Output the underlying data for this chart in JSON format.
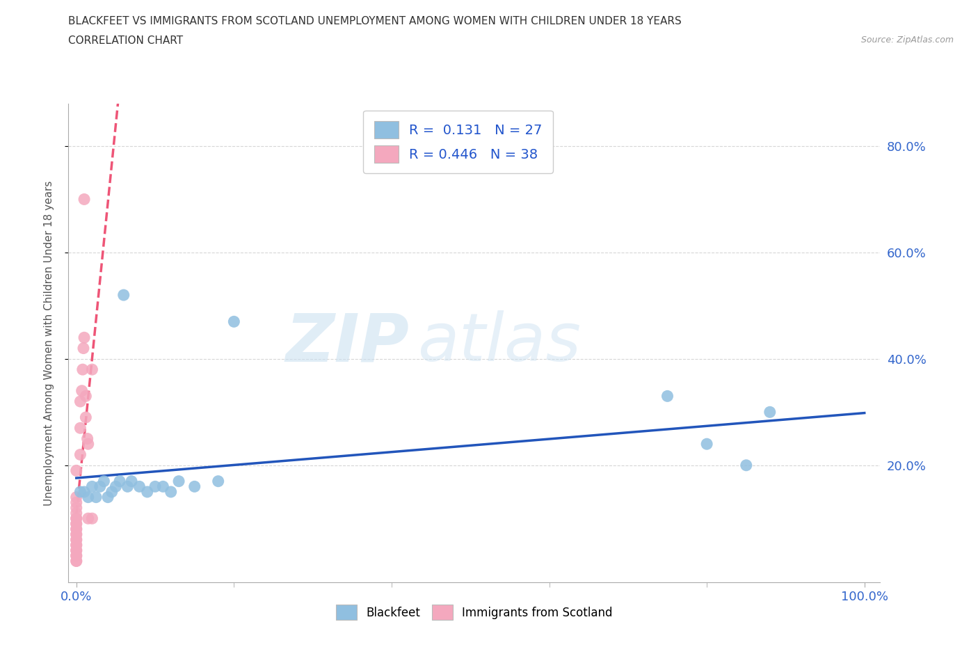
{
  "title_line1": "BLACKFEET VS IMMIGRANTS FROM SCOTLAND UNEMPLOYMENT AMONG WOMEN WITH CHILDREN UNDER 18 YEARS",
  "title_line2": "CORRELATION CHART",
  "source": "Source: ZipAtlas.com",
  "ylabel": "Unemployment Among Women with Children Under 18 years",
  "xlim": [
    -0.01,
    1.02
  ],
  "ylim": [
    -0.02,
    0.88
  ],
  "xtick_positions": [
    0.0,
    1.0
  ],
  "xtick_labels": [
    "0.0%",
    "100.0%"
  ],
  "ytick_positions": [
    0.2,
    0.4,
    0.6,
    0.8
  ],
  "ytick_labels": [
    "20.0%",
    "40.0%",
    "60.0%",
    "80.0%"
  ],
  "blue_color": "#90bfe0",
  "pink_color": "#f4a8be",
  "trend_blue_color": "#2255bb",
  "trend_pink_color": "#ee5577",
  "watermark_zip": "ZIP",
  "watermark_atlas": "atlas",
  "blackfeet_x": [
    0.005,
    0.01,
    0.015,
    0.02,
    0.025,
    0.03,
    0.035,
    0.04,
    0.045,
    0.05,
    0.055,
    0.06,
    0.065,
    0.07,
    0.08,
    0.09,
    0.1,
    0.11,
    0.12,
    0.13,
    0.15,
    0.18,
    0.2,
    0.75,
    0.8,
    0.85,
    0.88
  ],
  "blackfeet_y": [
    0.15,
    0.15,
    0.14,
    0.16,
    0.14,
    0.16,
    0.17,
    0.14,
    0.15,
    0.16,
    0.17,
    0.52,
    0.16,
    0.17,
    0.16,
    0.15,
    0.16,
    0.16,
    0.15,
    0.17,
    0.16,
    0.17,
    0.47,
    0.33,
    0.24,
    0.2,
    0.3
  ],
  "scotland_x": [
    0.0,
    0.0,
    0.0,
    0.0,
    0.0,
    0.0,
    0.0,
    0.0,
    0.0,
    0.0,
    0.0,
    0.0,
    0.0,
    0.0,
    0.0,
    0.0,
    0.0,
    0.0,
    0.0,
    0.0,
    0.0,
    0.0,
    0.0,
    0.005,
    0.005,
    0.005,
    0.007,
    0.008,
    0.009,
    0.01,
    0.01,
    0.012,
    0.012,
    0.014,
    0.015,
    0.015,
    0.02,
    0.02
  ],
  "scotland_y": [
    0.02,
    0.02,
    0.03,
    0.03,
    0.04,
    0.04,
    0.05,
    0.05,
    0.06,
    0.06,
    0.07,
    0.07,
    0.08,
    0.08,
    0.09,
    0.09,
    0.1,
    0.1,
    0.11,
    0.12,
    0.13,
    0.14,
    0.19,
    0.22,
    0.27,
    0.32,
    0.34,
    0.38,
    0.42,
    0.44,
    0.7,
    0.29,
    0.33,
    0.25,
    0.1,
    0.24,
    0.1,
    0.38
  ]
}
